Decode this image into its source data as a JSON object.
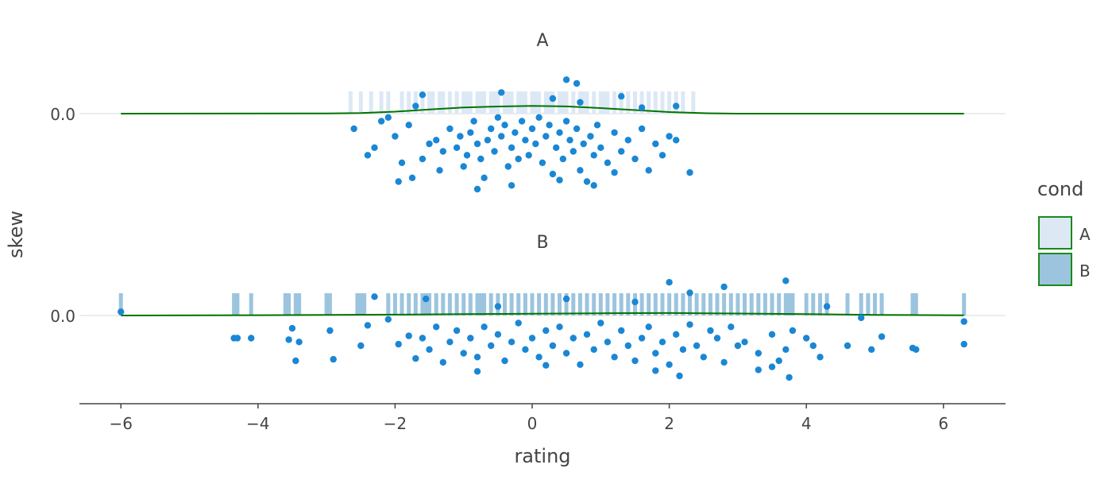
{
  "chart_data": {
    "type": "scatter",
    "x_axis": {
      "label": "rating",
      "range": [
        -6.6,
        6.9
      ],
      "ticks": [
        -6,
        -4,
        -2,
        0,
        2,
        4,
        6
      ],
      "tick_labels": [
        "−6",
        "−4",
        "−2",
        "0",
        "2",
        "4",
        "6"
      ]
    },
    "y_axis": {
      "label": "skew",
      "tick_label": "0.0"
    },
    "grid": true,
    "legend": {
      "title": "cond",
      "position": "right",
      "entries": [
        {
          "name": "A",
          "fill": "#dde8f5"
        },
        {
          "name": "B",
          "fill": "#9cc4de"
        }
      ]
    },
    "colors": {
      "points": "#1a87d5",
      "density_line": "#007400",
      "legend_border": "#1a8a1a",
      "rug_A": "#dde8f5",
      "rug_B": "#9cc4de"
    },
    "panels": [
      {
        "title": "A",
        "density": [
          [
            -6,
            0
          ],
          [
            -3,
            0.002
          ],
          [
            -2.5,
            0.006
          ],
          [
            -2,
            0.018
          ],
          [
            -1.5,
            0.037
          ],
          [
            -1,
            0.056
          ],
          [
            -0.5,
            0.064
          ],
          [
            0,
            0.07
          ],
          [
            0.5,
            0.065
          ],
          [
            1,
            0.05
          ],
          [
            1.5,
            0.032
          ],
          [
            2,
            0.014
          ],
          [
            2.5,
            0.004
          ],
          [
            3,
            0
          ],
          [
            6.3,
            0
          ]
        ],
        "rug": [
          -2.65,
          -2.5,
          -2.35,
          -2.2,
          -2.1,
          -1.9,
          -1.8,
          -1.7,
          -1.6,
          -1.5,
          -1.45,
          -1.35,
          -1.3,
          -1.2,
          -1.1,
          -1.0,
          -0.95,
          -0.9,
          -0.8,
          -0.75,
          -0.7,
          -0.6,
          -0.55,
          -0.5,
          -0.4,
          -0.35,
          -0.3,
          -0.2,
          -0.15,
          -0.1,
          0,
          0.05,
          0.1,
          0.2,
          0.25,
          0.3,
          0.4,
          0.45,
          0.5,
          0.6,
          0.7,
          0.75,
          0.8,
          0.9,
          1.0,
          1.05,
          1.1,
          1.2,
          1.3,
          1.4,
          1.5,
          1.6,
          1.7,
          1.8,
          1.9,
          2.0,
          2.1,
          2.2,
          2.35
        ],
        "points": [
          [
            -2.6,
            -0.2
          ],
          [
            -2.4,
            -0.55
          ],
          [
            -2.3,
            -0.45
          ],
          [
            -2.1,
            -0.05
          ],
          [
            -2.0,
            -0.3
          ],
          [
            -1.95,
            -0.9
          ],
          [
            -1.9,
            -0.65
          ],
          [
            -1.8,
            -0.15
          ],
          [
            -1.75,
            -0.85
          ],
          [
            -1.6,
            -0.6
          ],
          [
            -1.5,
            -0.4
          ],
          [
            -1.4,
            -0.35
          ],
          [
            -1.35,
            -0.75
          ],
          [
            -1.3,
            -0.5
          ],
          [
            -1.2,
            -0.2
          ],
          [
            -1.1,
            -0.45
          ],
          [
            -1.05,
            -0.3
          ],
          [
            -1.0,
            -0.7
          ],
          [
            -0.95,
            -0.55
          ],
          [
            -0.9,
            -0.25
          ],
          [
            -0.85,
            -0.1
          ],
          [
            -0.8,
            -0.4
          ],
          [
            -0.75,
            -0.6
          ],
          [
            -0.7,
            -0.85
          ],
          [
            -0.65,
            -0.35
          ],
          [
            -0.6,
            -0.2
          ],
          [
            -0.55,
            -0.5
          ],
          [
            -0.5,
            -0.05
          ],
          [
            -0.45,
            -0.3
          ],
          [
            -0.4,
            -0.15
          ],
          [
            -0.35,
            -0.7
          ],
          [
            -0.3,
            -0.45
          ],
          [
            -0.25,
            -0.25
          ],
          [
            -0.2,
            -0.6
          ],
          [
            -0.15,
            -0.1
          ],
          [
            -0.1,
            -0.35
          ],
          [
            -0.05,
            -0.55
          ],
          [
            0.0,
            -0.2
          ],
          [
            0.05,
            -0.4
          ],
          [
            0.1,
            -0.05
          ],
          [
            0.15,
            -0.65
          ],
          [
            0.2,
            -0.3
          ],
          [
            0.25,
            -0.15
          ],
          [
            0.3,
            -0.8
          ],
          [
            0.35,
            -0.45
          ],
          [
            0.4,
            -0.25
          ],
          [
            0.45,
            -0.6
          ],
          [
            0.5,
            -0.1
          ],
          [
            0.55,
            -0.35
          ],
          [
            0.6,
            -0.5
          ],
          [
            0.65,
            -0.2
          ],
          [
            0.7,
            -0.75
          ],
          [
            0.75,
            -0.4
          ],
          [
            0.8,
            -0.9
          ],
          [
            0.85,
            -0.3
          ],
          [
            0.9,
            -0.55
          ],
          [
            0.95,
            -0.15
          ],
          [
            1.0,
            -0.45
          ],
          [
            1.1,
            -0.65
          ],
          [
            1.2,
            -0.25
          ],
          [
            1.3,
            -0.5
          ],
          [
            1.4,
            -0.35
          ],
          [
            1.5,
            -0.6
          ],
          [
            1.6,
            -0.2
          ],
          [
            1.7,
            -0.75
          ],
          [
            1.8,
            -0.4
          ],
          [
            1.9,
            -0.55
          ],
          [
            2.0,
            -0.3
          ],
          [
            2.1,
            -0.35
          ],
          [
            2.3,
            -0.78
          ],
          [
            -2.2,
            -0.1
          ],
          [
            -1.6,
            0.25
          ],
          [
            -1.7,
            0.1
          ],
          [
            0.65,
            0.4
          ],
          [
            0.5,
            0.45
          ],
          [
            0.3,
            0.2
          ],
          [
            0.7,
            0.15
          ],
          [
            -0.45,
            0.28
          ],
          [
            1.3,
            0.23
          ],
          [
            1.6,
            0.08
          ],
          [
            2.1,
            0.1
          ],
          [
            -0.3,
            -0.95
          ],
          [
            0.4,
            -0.88
          ],
          [
            -0.8,
            -1.0
          ],
          [
            1.2,
            -0.78
          ],
          [
            0.9,
            -0.95
          ]
        ]
      },
      {
        "title": "B",
        "density": [
          [
            -6,
            0
          ],
          [
            -4,
            0.003
          ],
          [
            -2,
            0.008
          ],
          [
            -1,
            0.012
          ],
          [
            0,
            0.016
          ],
          [
            1,
            0.02
          ],
          [
            2,
            0.022
          ],
          [
            3,
            0.018
          ],
          [
            4,
            0.012
          ],
          [
            5,
            0.006
          ],
          [
            6.3,
            0.002
          ]
        ],
        "rug": [
          -6.0,
          -4.35,
          -4.3,
          -4.1,
          -3.6,
          -3.55,
          -3.45,
          -3.4,
          -3.0,
          -2.95,
          -2.55,
          -2.5,
          -2.45,
          -2.1,
          -2.0,
          -1.9,
          -1.8,
          -1.7,
          -1.6,
          -1.55,
          -1.5,
          -1.4,
          -1.3,
          -1.2,
          -1.1,
          -1.0,
          -0.9,
          -0.8,
          -0.75,
          -0.7,
          -0.6,
          -0.5,
          -0.4,
          -0.3,
          -0.2,
          -0.1,
          0.0,
          0.1,
          0.2,
          0.3,
          0.4,
          0.5,
          0.6,
          0.7,
          0.8,
          0.9,
          1.0,
          1.1,
          1.2,
          1.3,
          1.4,
          1.5,
          1.6,
          1.7,
          1.8,
          1.9,
          2.0,
          2.1,
          2.2,
          2.3,
          2.4,
          2.5,
          2.6,
          2.7,
          2.8,
          2.9,
          3.0,
          3.1,
          3.2,
          3.3,
          3.4,
          3.5,
          3.6,
          3.7,
          3.75,
          3.8,
          4.0,
          4.1,
          4.2,
          4.3,
          4.6,
          4.8,
          4.9,
          5.0,
          5.1,
          5.55,
          5.6,
          6.3
        ],
        "points": [
          [
            -6.0,
            0.05
          ],
          [
            -4.35,
            -0.3
          ],
          [
            -4.3,
            -0.3
          ],
          [
            -4.1,
            -0.3
          ],
          [
            -3.55,
            -0.32
          ],
          [
            -3.45,
            -0.6
          ],
          [
            -3.5,
            -0.17
          ],
          [
            -3.4,
            -0.35
          ],
          [
            -2.95,
            -0.2
          ],
          [
            -2.9,
            -0.58
          ],
          [
            -2.5,
            -0.4
          ],
          [
            -2.4,
            -0.13
          ],
          [
            -2.1,
            -0.05
          ],
          [
            -1.95,
            -0.38
          ],
          [
            -1.8,
            -0.27
          ],
          [
            -1.7,
            -0.57
          ],
          [
            -1.6,
            -0.3
          ],
          [
            -1.5,
            -0.45
          ],
          [
            -1.4,
            -0.15
          ],
          [
            -1.3,
            -0.62
          ],
          [
            -1.2,
            -0.35
          ],
          [
            -1.1,
            -0.2
          ],
          [
            -1.0,
            -0.5
          ],
          [
            -0.9,
            -0.3
          ],
          [
            -0.8,
            -0.55
          ],
          [
            -0.7,
            -0.15
          ],
          [
            -0.6,
            -0.4
          ],
          [
            -0.5,
            -0.25
          ],
          [
            -0.4,
            -0.6
          ],
          [
            -0.3,
            -0.35
          ],
          [
            -0.2,
            -0.1
          ],
          [
            -0.1,
            -0.45
          ],
          [
            0,
            -0.3
          ],
          [
            0.1,
            -0.55
          ],
          [
            0.2,
            -0.2
          ],
          [
            0.3,
            -0.4
          ],
          [
            0.4,
            -0.15
          ],
          [
            0.5,
            -0.5
          ],
          [
            0.6,
            -0.3
          ],
          [
            0.7,
            -0.65
          ],
          [
            0.8,
            -0.25
          ],
          [
            0.9,
            -0.45
          ],
          [
            1.0,
            -0.1
          ],
          [
            1.1,
            -0.35
          ],
          [
            1.2,
            -0.55
          ],
          [
            1.3,
            -0.2
          ],
          [
            1.4,
            -0.4
          ],
          [
            1.5,
            -0.6
          ],
          [
            1.6,
            -0.3
          ],
          [
            1.7,
            -0.15
          ],
          [
            1.8,
            -0.5
          ],
          [
            1.9,
            -0.35
          ],
          [
            2.0,
            -0.65
          ],
          [
            2.1,
            -0.25
          ],
          [
            2.2,
            -0.45
          ],
          [
            2.3,
            -0.12
          ],
          [
            2.4,
            -0.4
          ],
          [
            2.5,
            -0.55
          ],
          [
            2.6,
            -0.2
          ],
          [
            2.7,
            -0.3
          ],
          [
            2.8,
            -0.62
          ],
          [
            2.9,
            -0.15
          ],
          [
            3.0,
            -0.4
          ],
          [
            3.1,
            -0.35
          ],
          [
            3.3,
            -0.5
          ],
          [
            3.5,
            -0.25
          ],
          [
            3.6,
            -0.6
          ],
          [
            3.7,
            -0.45
          ],
          [
            3.8,
            -0.2
          ],
          [
            4.0,
            -0.3
          ],
          [
            4.1,
            -0.4
          ],
          [
            4.2,
            -0.55
          ],
          [
            4.6,
            -0.4
          ],
          [
            4.8,
            -0.03
          ],
          [
            4.95,
            -0.45
          ],
          [
            5.1,
            -0.28
          ],
          [
            5.55,
            -0.43
          ],
          [
            5.6,
            -0.45
          ],
          [
            6.3,
            -0.08
          ],
          [
            6.3,
            -0.38
          ],
          [
            -2.3,
            0.25
          ],
          [
            -1.55,
            0.22
          ],
          [
            -0.5,
            0.12
          ],
          [
            0.5,
            0.22
          ],
          [
            1.5,
            0.18
          ],
          [
            2.0,
            0.44
          ],
          [
            2.3,
            0.3
          ],
          [
            2.8,
            0.38
          ],
          [
            3.7,
            0.46
          ],
          [
            4.3,
            0.12
          ],
          [
            3.3,
            -0.72
          ],
          [
            3.75,
            -0.82
          ],
          [
            2.15,
            -0.8
          ],
          [
            1.8,
            -0.73
          ],
          [
            3.5,
            -0.68
          ],
          [
            -0.8,
            -0.74
          ],
          [
            0.2,
            -0.66
          ]
        ]
      }
    ]
  }
}
